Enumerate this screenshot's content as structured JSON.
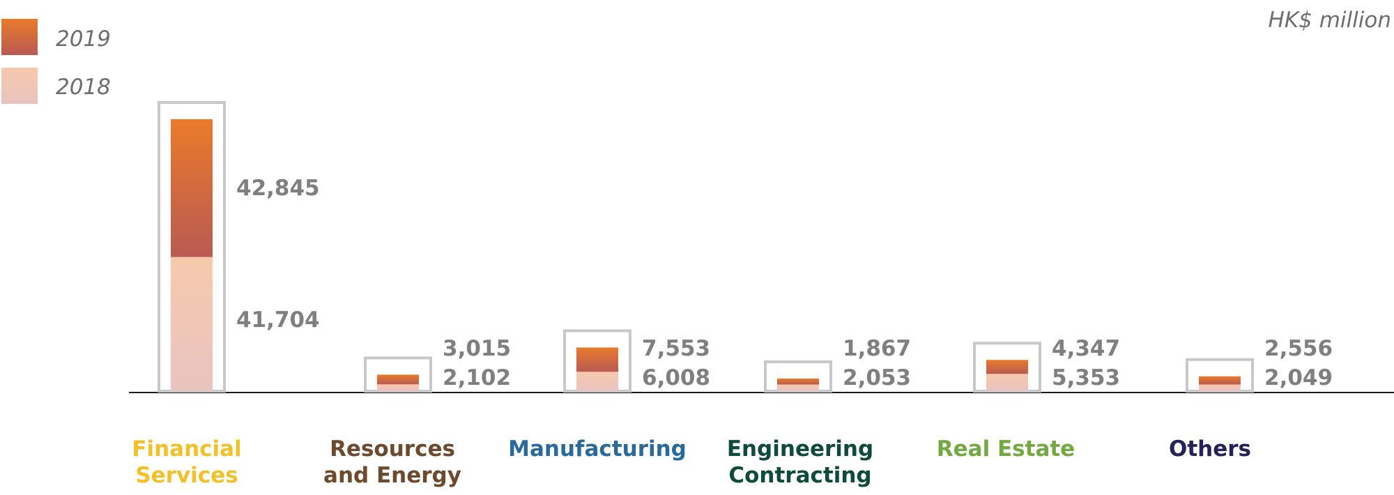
{
  "chart_data": {
    "type": "bar",
    "unit": "HK$ million",
    "categories": [
      {
        "name_lines": [
          "Financial",
          "Services"
        ],
        "color": "#f2c029"
      },
      {
        "name_lines": [
          "Resources",
          "and Energy"
        ],
        "color": "#6b4a2e"
      },
      {
        "name_lines": [
          "Manufacturing"
        ],
        "color": "#2a6a9b"
      },
      {
        "name_lines": [
          "Engineering",
          "Contracting"
        ],
        "color": "#0f4a3a"
      },
      {
        "name_lines": [
          "Real Estate"
        ],
        "color": "#73a843"
      },
      {
        "name_lines": [
          "Others"
        ],
        "color": "#232357"
      }
    ],
    "series": [
      {
        "name": "2019",
        "values": [
          42845,
          3015,
          7553,
          1867,
          4347,
          2556
        ],
        "labels": [
          "42,845",
          "3,015",
          "7,553",
          "1,867",
          "4,347",
          "2,556"
        ],
        "colors": [
          "#e97b2b",
          "#b95a52"
        ]
      },
      {
        "name": "2018",
        "values": [
          41704,
          2102,
          6008,
          2053,
          5353,
          2049
        ],
        "labels": [
          "41,704",
          "2,102",
          "6,008",
          "2,053",
          "5,353",
          "2,049"
        ],
        "colors": [
          "#f7c9ac",
          "#e8c3c0"
        ]
      }
    ],
    "stacked": true,
    "legend": "top-left",
    "grid": false
  }
}
